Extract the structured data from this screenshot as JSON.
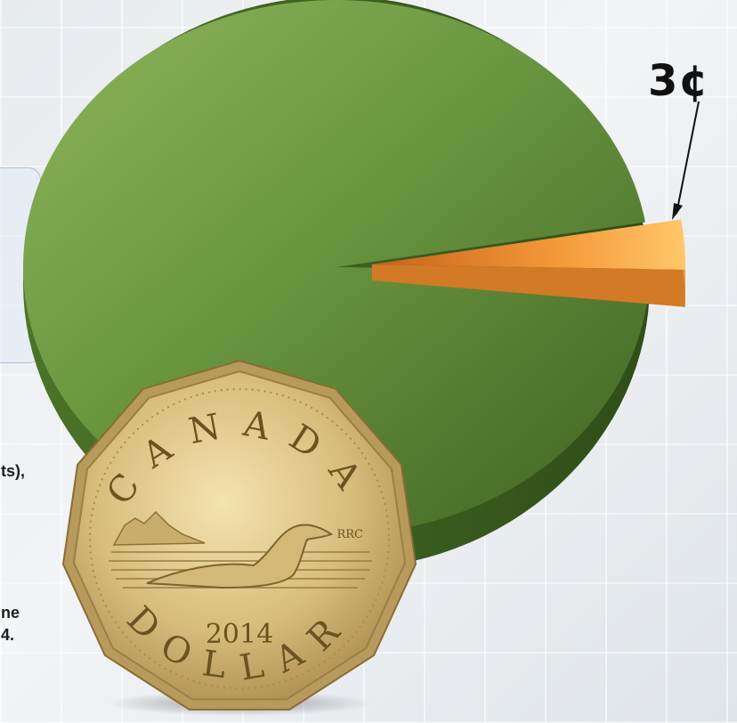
{
  "chart_data": {
    "type": "pie",
    "slices": [
      {
        "label": "",
        "value": 97,
        "color": "#5e8a35"
      },
      {
        "label": "3¢",
        "value": 3,
        "color": "#f0a040"
      }
    ],
    "annotation": "3¢"
  },
  "left_text": {
    "line1": "ts),",
    "line2": "ne",
    "line3": "4."
  },
  "coin": {
    "country": "CANADA",
    "denomination": "DOLLAR",
    "year": "2014",
    "mint_mark": "RRC"
  }
}
